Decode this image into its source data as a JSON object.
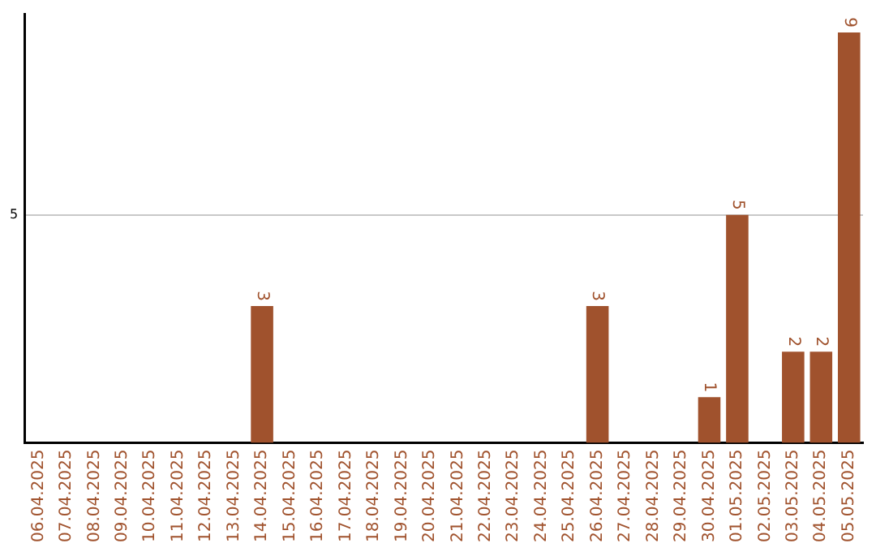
{
  "chart_data": {
    "type": "bar",
    "categories": [
      "06.04.2025",
      "07.04.2025",
      "08.04.2025",
      "09.04.2025",
      "10.04.2025",
      "11.04.2025",
      "12.04.2025",
      "13.04.2025",
      "14.04.2025",
      "15.04.2025",
      "16.04.2025",
      "17.04.2025",
      "18.04.2025",
      "19.04.2025",
      "20.04.2025",
      "21.04.2025",
      "22.04.2025",
      "23.04.2025",
      "24.04.2025",
      "25.04.2025",
      "26.04.2025",
      "27.04.2025",
      "28.04.2025",
      "29.04.2025",
      "30.04.2025",
      "01.05.2025",
      "02.05.2025",
      "03.05.2025",
      "04.05.2025",
      "05.05.2025"
    ],
    "values": [
      0,
      0,
      0,
      0,
      0,
      0,
      0,
      0,
      3,
      0,
      0,
      0,
      0,
      0,
      0,
      0,
      0,
      0,
      0,
      0,
      3,
      0,
      0,
      0,
      1,
      5,
      0,
      2,
      2,
      9
    ],
    "value_labels": [
      null,
      null,
      null,
      null,
      null,
      null,
      null,
      null,
      "3",
      null,
      null,
      null,
      null,
      null,
      null,
      null,
      null,
      null,
      null,
      null,
      "3",
      null,
      null,
      null,
      "1",
      "5",
      null,
      "2",
      "2",
      "9"
    ],
    "color": "#a0522d",
    "ylim": [
      0,
      9.4
    ],
    "yticks": [
      5
    ],
    "grid": "y",
    "legend": false
  }
}
